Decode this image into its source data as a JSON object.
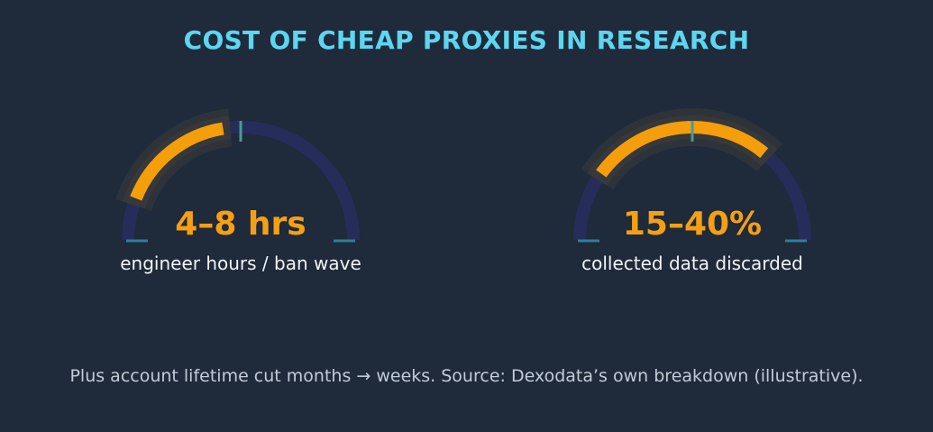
{
  "title": "COST OF CHEAP PROXIES IN RESEARCH",
  "chart_data": [
    {
      "type": "gauge",
      "value_text": "4–8 hrs",
      "label": "engineer hours / ban wave",
      "range_fraction": [
        0.12,
        0.45
      ],
      "marker_fraction": 0.5
    },
    {
      "type": "gauge",
      "value_text": "15–40%",
      "label": "collected data discarded",
      "range_fraction": [
        0.2,
        0.72
      ],
      "marker_fraction": 0.5
    }
  ],
  "footer": "Plus account lifetime cut months → weeks.  Source: Dexodata’s own breakdown (illustrative).",
  "colors": {
    "background": "#1f2a3b",
    "title": "#5dd6f0",
    "track": "#272d5a",
    "fill": "#f59e0b",
    "glow": "#3b3a3a",
    "marker": "#4a9a9a",
    "endcap": "#2f7e9a",
    "label": "#f2f4f7",
    "footer": "#c3cbd6"
  }
}
